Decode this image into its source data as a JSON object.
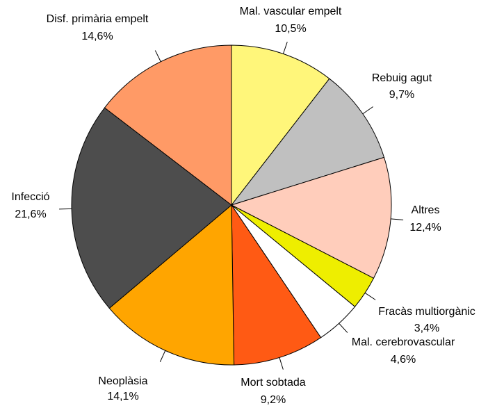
{
  "chart_data": {
    "type": "pie",
    "categories": [
      "Mal. vascular empelt",
      "Rebuig agut",
      "Altres",
      "Fracàs multiorgànic",
      "Mal. cerebrovascular",
      "Mort sobtada",
      "Neoplàsia",
      "Infecció",
      "Disf. primària empelt"
    ],
    "values": [
      10.5,
      9.7,
      12.4,
      3.4,
      4.6,
      9.2,
      14.1,
      21.6,
      14.6
    ],
    "value_labels": [
      "10,5%",
      "9,7%",
      "12,4%",
      "3,4%",
      "4,6%",
      "9,2%",
      "14,1%",
      "21,6%",
      "14,6%"
    ],
    "colors": [
      "#fff67a",
      "#c0c0c0",
      "#ffcdbb",
      "#eeee00",
      "#ffffff",
      "#ff5a14",
      "#ffa500",
      "#4d4d4d",
      "#ff9a66"
    ]
  }
}
